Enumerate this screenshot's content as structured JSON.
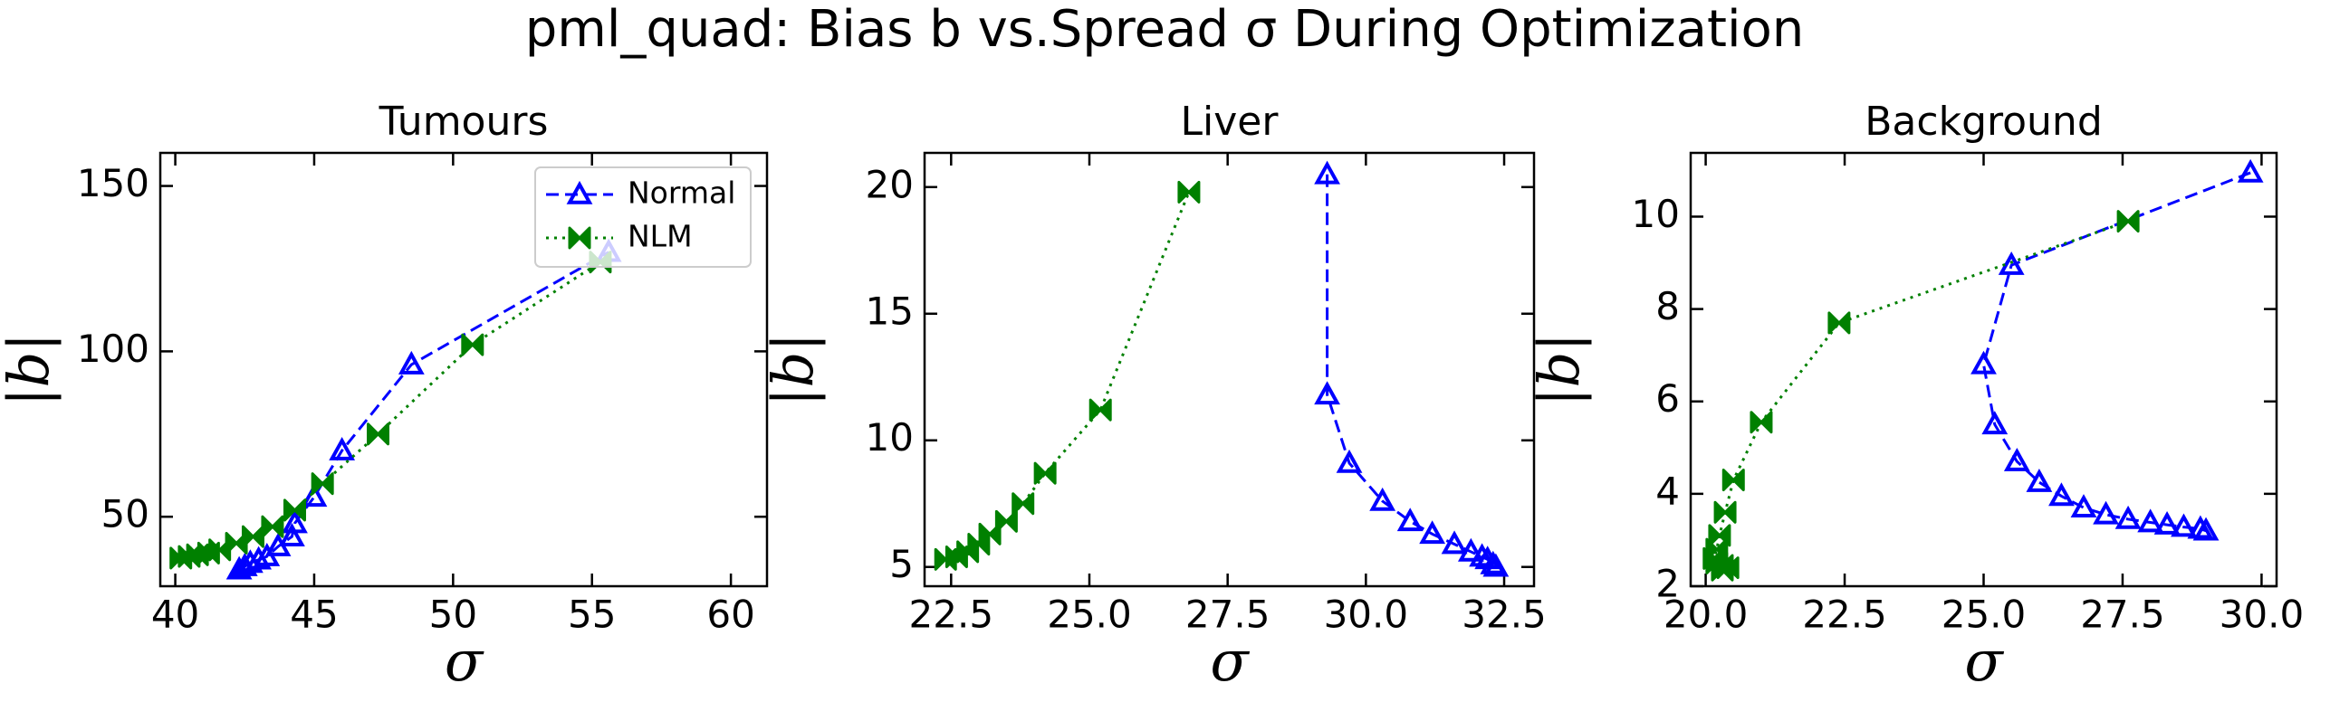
{
  "title": "pml_quad: Bias b vs.Spread σ During Optimization",
  "chart_data": [
    {
      "type": "line",
      "title": "Tumours",
      "x_label": "σ",
      "y_label": "|b|",
      "xlim": [
        39.46,
        61.3
      ],
      "ylim": [
        29,
        160
      ],
      "xticks": [
        40,
        45,
        50,
        55,
        60
      ],
      "yticks": [
        50,
        100,
        150
      ],
      "legend": "upper right",
      "series": [
        {
          "name": "Normal",
          "color": "#0000ff",
          "marker": "triangle",
          "linestyle": "dashed",
          "x": [
            42.3,
            42.5,
            42.7,
            43.0,
            43.3,
            43.7,
            44.2,
            44.3,
            45.0,
            46.0,
            48.5,
            55.6
          ],
          "values": [
            34,
            35,
            36,
            37,
            38,
            41,
            44,
            48,
            56,
            70,
            96,
            130
          ]
        },
        {
          "name": "NLM",
          "color": "#008000",
          "marker": "bowtie",
          "linestyle": "dotted",
          "x": [
            40.2,
            40.5,
            40.8,
            41.2,
            41.6,
            42.2,
            42.8,
            43.5,
            44.3,
            45.3,
            47.3,
            50.7,
            55.3
          ],
          "values": [
            37.5,
            38,
            38.5,
            39,
            40,
            42,
            44,
            47,
            52,
            60,
            75,
            102,
            127
          ]
        }
      ]
    },
    {
      "type": "line",
      "title": "Liver",
      "x_label": "σ",
      "y_label": "|b|",
      "xlim": [
        22.02,
        33.04
      ],
      "ylim": [
        4.24,
        21.35
      ],
      "xticks": [
        22.5,
        {
          "value": 25,
          "label": "25.0"
        },
        27.5,
        {
          "value": 30,
          "label": "30.0"
        },
        32.5
      ],
      "yticks": [
        5,
        10,
        15,
        20
      ],
      "series": [
        {
          "color": "#0000ff",
          "marker": "triangle",
          "linestyle": "dashed",
          "x": [
            29.3,
            29.3,
            29.7,
            30.3,
            30.8,
            31.2,
            31.6,
            31.9,
            32.1,
            32.2,
            32.3,
            32.35
          ],
          "values": [
            20.5,
            11.8,
            9.1,
            7.6,
            6.8,
            6.3,
            5.9,
            5.6,
            5.4,
            5.3,
            5.1,
            5.0
          ]
        },
        {
          "color": "#008000",
          "marker": "bowtie",
          "linestyle": "dotted",
          "x": [
            22.4,
            22.6,
            22.8,
            23.0,
            23.2,
            23.5,
            23.8,
            24.2,
            25.2,
            26.8
          ],
          "values": [
            5.3,
            5.4,
            5.6,
            5.9,
            6.3,
            6.8,
            7.5,
            8.7,
            11.2,
            19.8
          ]
        }
      ]
    },
    {
      "type": "line",
      "title": "Background",
      "x_label": "σ",
      "y_label": "|b|",
      "xlim": [
        19.73,
        30.27
      ],
      "ylim": [
        2,
        11.38
      ],
      "xticks": [
        {
          "value": 20,
          "label": "20.0"
        },
        22.5,
        {
          "value": 25,
          "label": "25.0"
        },
        27.5,
        {
          "value": 30,
          "label": "30.0"
        }
      ],
      "yticks": [
        2,
        4,
        6,
        8,
        10
      ],
      "series": [
        {
          "color": "#0000ff",
          "marker": "triangle",
          "linestyle": "dashed",
          "x": [
            29.8,
            25.5,
            25.0,
            25.2,
            25.6,
            26.0,
            26.4,
            26.8,
            27.2,
            27.6,
            28.0,
            28.3,
            28.6,
            28.9,
            29.0
          ],
          "values": [
            10.95,
            8.95,
            6.8,
            5.5,
            4.7,
            4.25,
            3.95,
            3.7,
            3.55,
            3.45,
            3.38,
            3.33,
            3.28,
            3.24,
            3.2
          ]
        },
        {
          "color": "#008000",
          "marker": "bowtie",
          "linestyle": "dotted",
          "x": [
            27.6,
            22.4,
            21.0,
            20.5,
            20.35,
            20.25,
            20.2,
            20.15,
            20.2,
            20.3,
            20.4,
            20.3
          ],
          "values": [
            9.9,
            7.7,
            5.55,
            4.3,
            3.6,
            3.1,
            2.8,
            2.6,
            2.5,
            2.45,
            2.4,
            2.35
          ]
        }
      ]
    }
  ]
}
